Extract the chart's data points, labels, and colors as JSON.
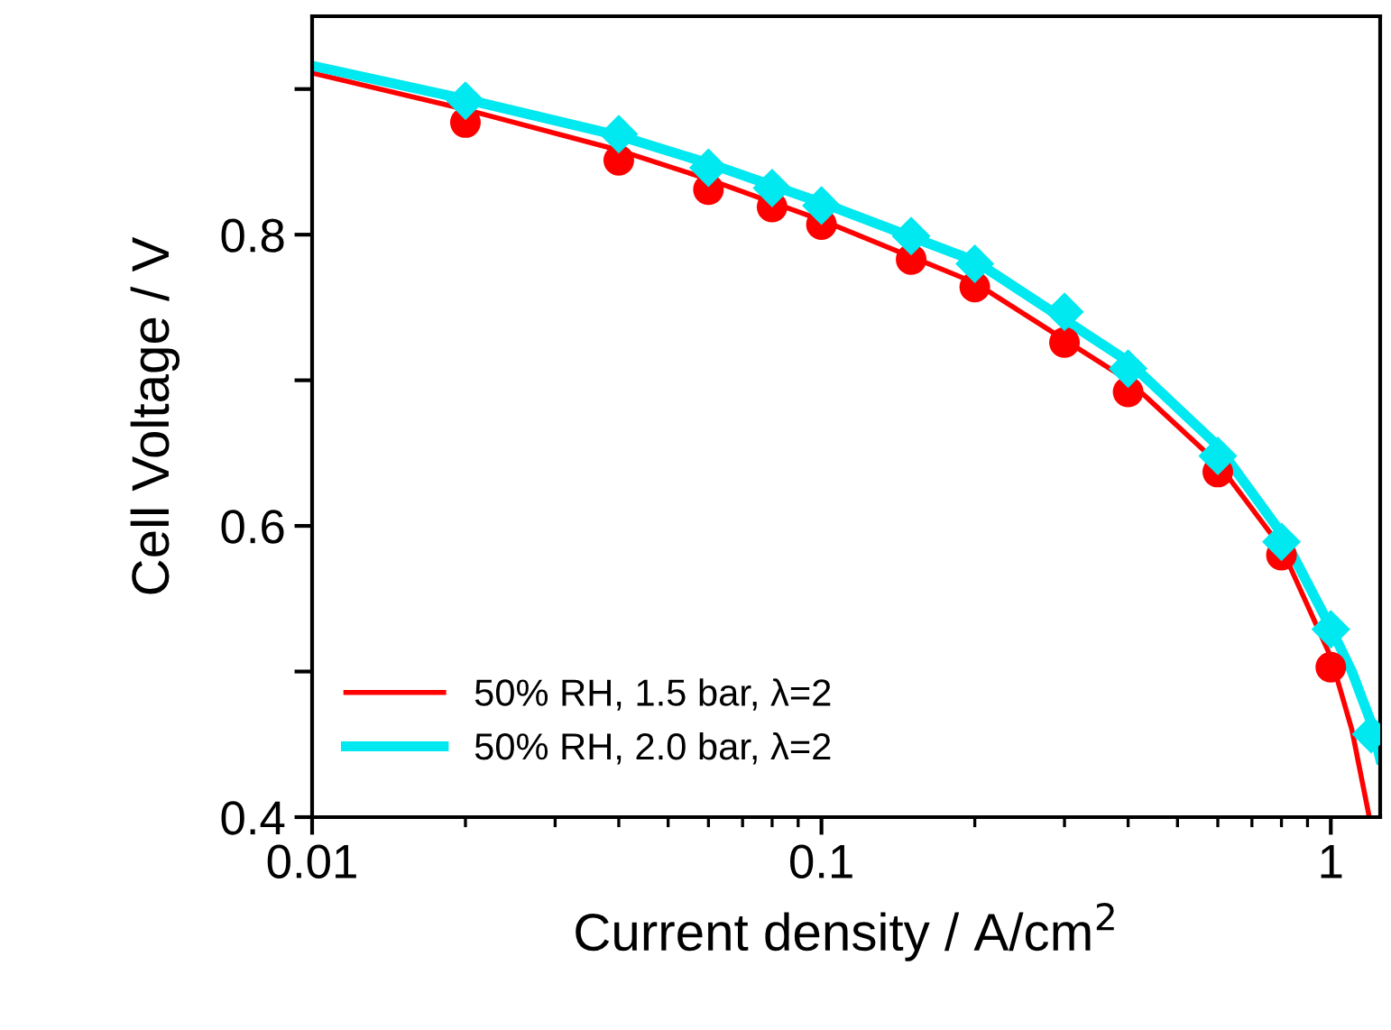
{
  "chart_data": {
    "type": "scatter",
    "xlabel": "Current density / A/cm$^{2}$",
    "ylabel": "Cell Voltage / V",
    "log": "x",
    "xlim": [
      0.01,
      1.25
    ],
    "ylim": [
      0.4,
      0.95
    ],
    "xticks": [
      0.01,
      0.1,
      {
        "value": 1,
        "label": "1"
      }
    ],
    "yticks": [
      0.4,
      {
        "value": 0.5,
        "label": null
      },
      0.6,
      {
        "value": 0.7,
        "label": null
      },
      0.8,
      {
        "value": 0.9,
        "label": null
      }
    ],
    "grid": false,
    "legend": "bottom left",
    "series": [
      {
        "type": "line",
        "name": "50% RH, 1.5 bar, λ=2",
        "color": "#ff0000",
        "marker": "none",
        "line_style": "solid",
        "x": [
          0.01,
          0.02,
          0.04,
          0.06,
          0.1,
          0.2,
          0.4,
          0.6,
          0.8,
          1.0,
          1.1,
          1.19
        ],
        "values": [
          0.911,
          0.886,
          0.858,
          0.838,
          0.81,
          0.767,
          0.7,
          0.643,
          0.585,
          0.51,
          0.46,
          0.4
        ]
      },
      {
        "type": "line",
        "name": "50% RH, 2.0 bar, λ=2",
        "color": "#00e8f0",
        "marker": "none",
        "line_style": "solid",
        "x": [
          0.01,
          0.02,
          0.04,
          0.06,
          0.1,
          0.2,
          0.4,
          0.6,
          0.8,
          1.0,
          1.1,
          1.2,
          1.25
        ],
        "values": [
          0.916,
          0.893,
          0.868,
          0.849,
          0.822,
          0.782,
          0.713,
          0.655,
          0.595,
          0.53,
          0.5,
          0.465,
          0.44
        ]
      },
      {
        "color": "#ff0000",
        "marker": "circle",
        "x": [
          0.02,
          0.04,
          0.06,
          0.08,
          0.1,
          0.15,
          0.2,
          0.3,
          0.4,
          0.6,
          0.8,
          1.0
        ],
        "values": [
          0.877,
          0.851,
          0.831,
          0.819,
          0.807,
          0.783,
          0.764,
          0.726,
          0.692,
          0.637,
          0.58,
          0.503
        ]
      },
      {
        "color": "#00e8f0",
        "marker": "diamond",
        "x": [
          0.02,
          0.04,
          0.06,
          0.08,
          0.1,
          0.15,
          0.2,
          0.3,
          0.4,
          0.6,
          0.8,
          1.0,
          1.2
        ],
        "values": [
          0.892,
          0.869,
          0.846,
          0.832,
          0.82,
          0.799,
          0.78,
          0.747,
          0.708,
          0.648,
          0.589,
          0.529,
          0.457
        ]
      }
    ]
  }
}
